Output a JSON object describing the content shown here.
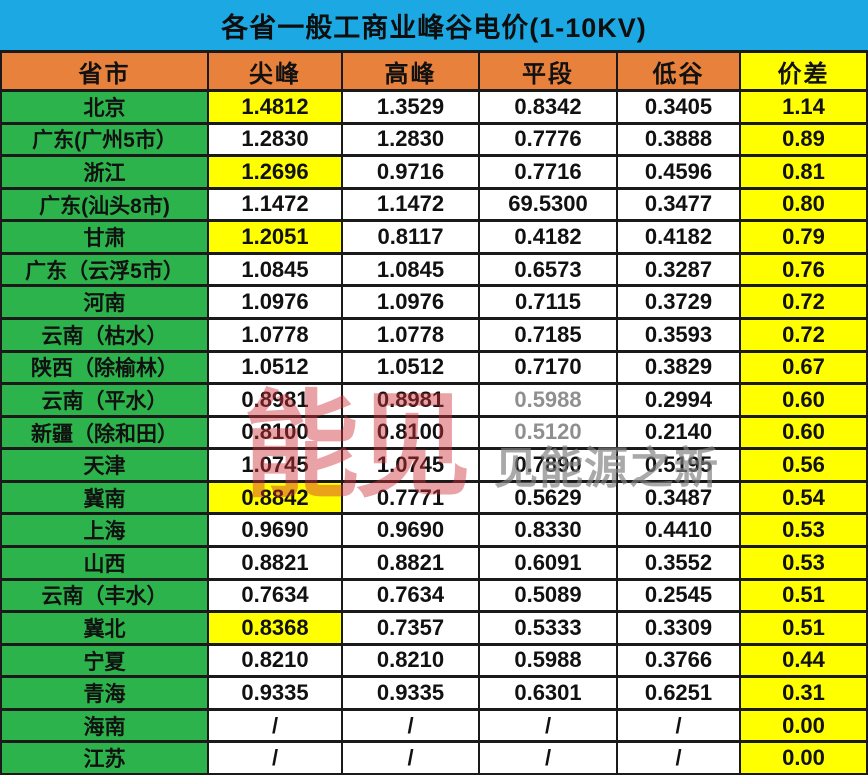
{
  "title": "各省一般工商业峰谷电价(1-10KV)",
  "watermark": {
    "logo": "能见",
    "caption": "见能源之新"
  },
  "colors": {
    "title_bg": "#1CA9E3",
    "header_bg": "#E8813C",
    "province_bg": "#2CB34B",
    "highlight_yellow": "#FFFF00",
    "border": "#1A1A1A",
    "muted_text": "#8F8F8F",
    "watermark_red": "#CE303A"
  },
  "chart_data": {
    "type": "table",
    "title": "各省一般工商业峰谷电价(1-10KV)",
    "columns": [
      "省市",
      "尖峰",
      "高峰",
      "平段",
      "低谷",
      "价差"
    ],
    "rows": [
      {
        "province": "北京",
        "values": [
          "1.4812",
          "1.3529",
          "0.8342",
          "0.3405",
          "1.14"
        ],
        "peak_highlight": true
      },
      {
        "province": "广东(广州5市）",
        "values": [
          "1.2830",
          "1.2830",
          "0.7776",
          "0.3888",
          "0.89"
        ]
      },
      {
        "province": "浙江",
        "values": [
          "1.2696",
          "0.9716",
          "0.7716",
          "0.4596",
          "0.81"
        ],
        "peak_highlight": true
      },
      {
        "province": "广东(汕头8市)",
        "values": [
          "1.1472",
          "1.1472",
          "69.5300",
          "0.3477",
          "0.80"
        ]
      },
      {
        "province": "甘肃",
        "values": [
          "1.2051",
          "0.8117",
          "0.4182",
          "0.4182",
          "0.79"
        ],
        "peak_highlight": true
      },
      {
        "province": "广东（云浮5市）",
        "values": [
          "1.0845",
          "1.0845",
          "0.6573",
          "0.3287",
          "0.76"
        ]
      },
      {
        "province": "河南",
        "values": [
          "1.0976",
          "1.0976",
          "0.7115",
          "0.3729",
          "0.72"
        ]
      },
      {
        "province": "云南（枯水）",
        "values": [
          "1.0778",
          "1.0778",
          "0.7185",
          "0.3593",
          "0.72"
        ]
      },
      {
        "province": "陕西（除榆林）",
        "values": [
          "1.0512",
          "1.0512",
          "0.7170",
          "0.3829",
          "0.67"
        ]
      },
      {
        "province": "云南（平水）",
        "values": [
          "0.8981",
          "0.8981",
          "0.5988",
          "0.2994",
          "0.60"
        ],
        "muted": [
          2
        ]
      },
      {
        "province": "新疆（除和田）",
        "values": [
          "0.8100",
          "0.8100",
          "0.5120",
          "0.2140",
          "0.60"
        ],
        "muted": [
          2
        ]
      },
      {
        "province": "天津",
        "values": [
          "1.0745",
          "1.0745",
          "0.7890",
          "0.5195",
          "0.56"
        ]
      },
      {
        "province": "冀南",
        "values": [
          "0.8842",
          "0.7771",
          "0.5629",
          "0.3487",
          "0.54"
        ],
        "peak_highlight": true
      },
      {
        "province": "上海",
        "values": [
          "0.9690",
          "0.9690",
          "0.8330",
          "0.4410",
          "0.53"
        ]
      },
      {
        "province": "山西",
        "values": [
          "0.8821",
          "0.8821",
          "0.6091",
          "0.3552",
          "0.53"
        ]
      },
      {
        "province": "云南（丰水）",
        "values": [
          "0.7634",
          "0.7634",
          "0.5089",
          "0.2545",
          "0.51"
        ]
      },
      {
        "province": "冀北",
        "values": [
          "0.8368",
          "0.7357",
          "0.5333",
          "0.3309",
          "0.51"
        ],
        "peak_highlight": true
      },
      {
        "province": "宁夏",
        "values": [
          "0.8210",
          "0.8210",
          "0.5988",
          "0.3766",
          "0.44"
        ]
      },
      {
        "province": "青海",
        "values": [
          "0.9335",
          "0.9335",
          "0.6301",
          "0.6251",
          "0.31"
        ]
      },
      {
        "province": "海南",
        "values": [
          "/",
          "/",
          "/",
          "/",
          "0.00"
        ]
      },
      {
        "province": "江苏",
        "values": [
          "/",
          "/",
          "/",
          "/",
          "0.00"
        ]
      }
    ]
  }
}
